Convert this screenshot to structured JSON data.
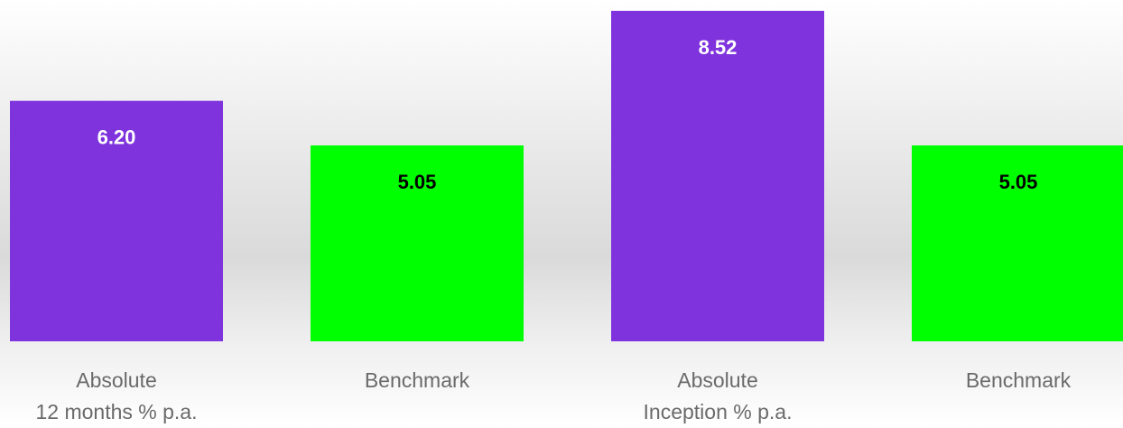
{
  "chart_data": {
    "type": "bar",
    "categories": [
      "Absolute\n12 months % p.a.",
      "Benchmark",
      "Absolute\nInception % p.a.",
      "Benchmark"
    ],
    "values": [
      6.2,
      5.05,
      8.52,
      5.05
    ],
    "value_labels": [
      "6.20",
      "5.05",
      "8.52",
      "5.05"
    ],
    "colors": [
      "#7f33dd",
      "#00ff00",
      "#7f33dd",
      "#00ff00"
    ],
    "label_colors": [
      "#ffffff",
      "#000000",
      "#ffffff",
      "#000000"
    ]
  }
}
